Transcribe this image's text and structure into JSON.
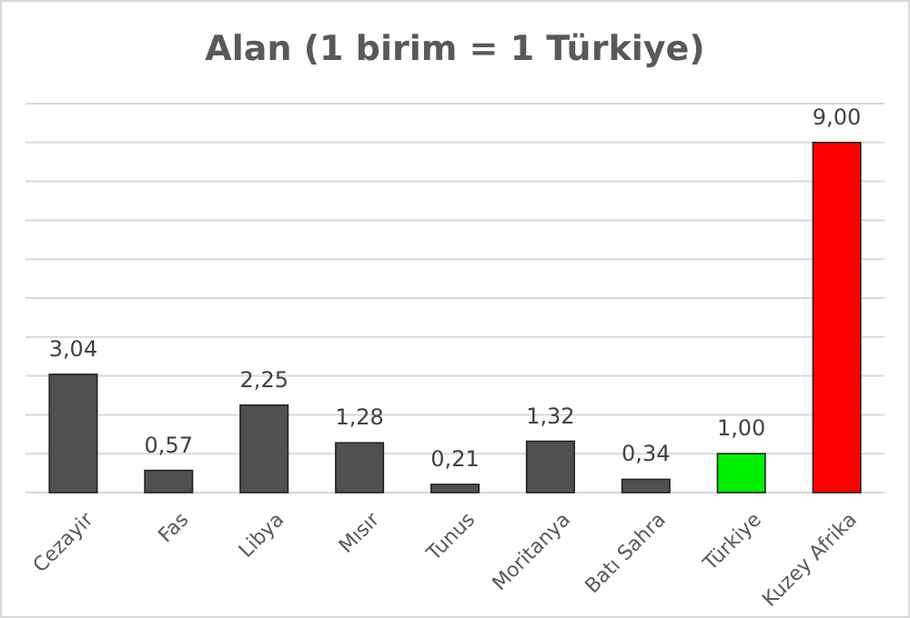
{
  "chart_data": {
    "type": "bar",
    "title": "Alan (1 birim = 1 Türkiye)",
    "categories": [
      "Cezayir",
      "Fas",
      "Libya",
      "Mısır",
      "Tunus",
      "Moritanya",
      "Batı Sahra",
      "Türkiye",
      "Kuzey Afrika"
    ],
    "values": [
      3.04,
      0.57,
      2.25,
      1.28,
      0.21,
      1.32,
      0.34,
      1.0,
      9.0
    ],
    "value_labels": [
      "3,04",
      "0,57",
      "2,25",
      "1,28",
      "0,21",
      "1,32",
      "0,34",
      "1,00",
      "9,00"
    ],
    "colors": [
      "#505050",
      "#505050",
      "#505050",
      "#505050",
      "#505050",
      "#505050",
      "#505050",
      "#00ee00",
      "#ff0000"
    ],
    "ylim": [
      0,
      10
    ],
    "yticks": [
      {
        "value": 0,
        "label": null
      },
      {
        "value": 1,
        "label": null
      },
      {
        "value": 2,
        "label": null
      },
      {
        "value": 3,
        "label": null
      },
      {
        "value": 4,
        "label": null
      },
      {
        "value": 5,
        "label": null
      },
      {
        "value": 6,
        "label": null
      },
      {
        "value": 7,
        "label": null
      },
      {
        "value": 8,
        "label": null
      },
      {
        "value": 9,
        "label": null
      },
      {
        "value": 10,
        "label": null
      }
    ],
    "grid": "y",
    "tick_labels": "x"
  }
}
